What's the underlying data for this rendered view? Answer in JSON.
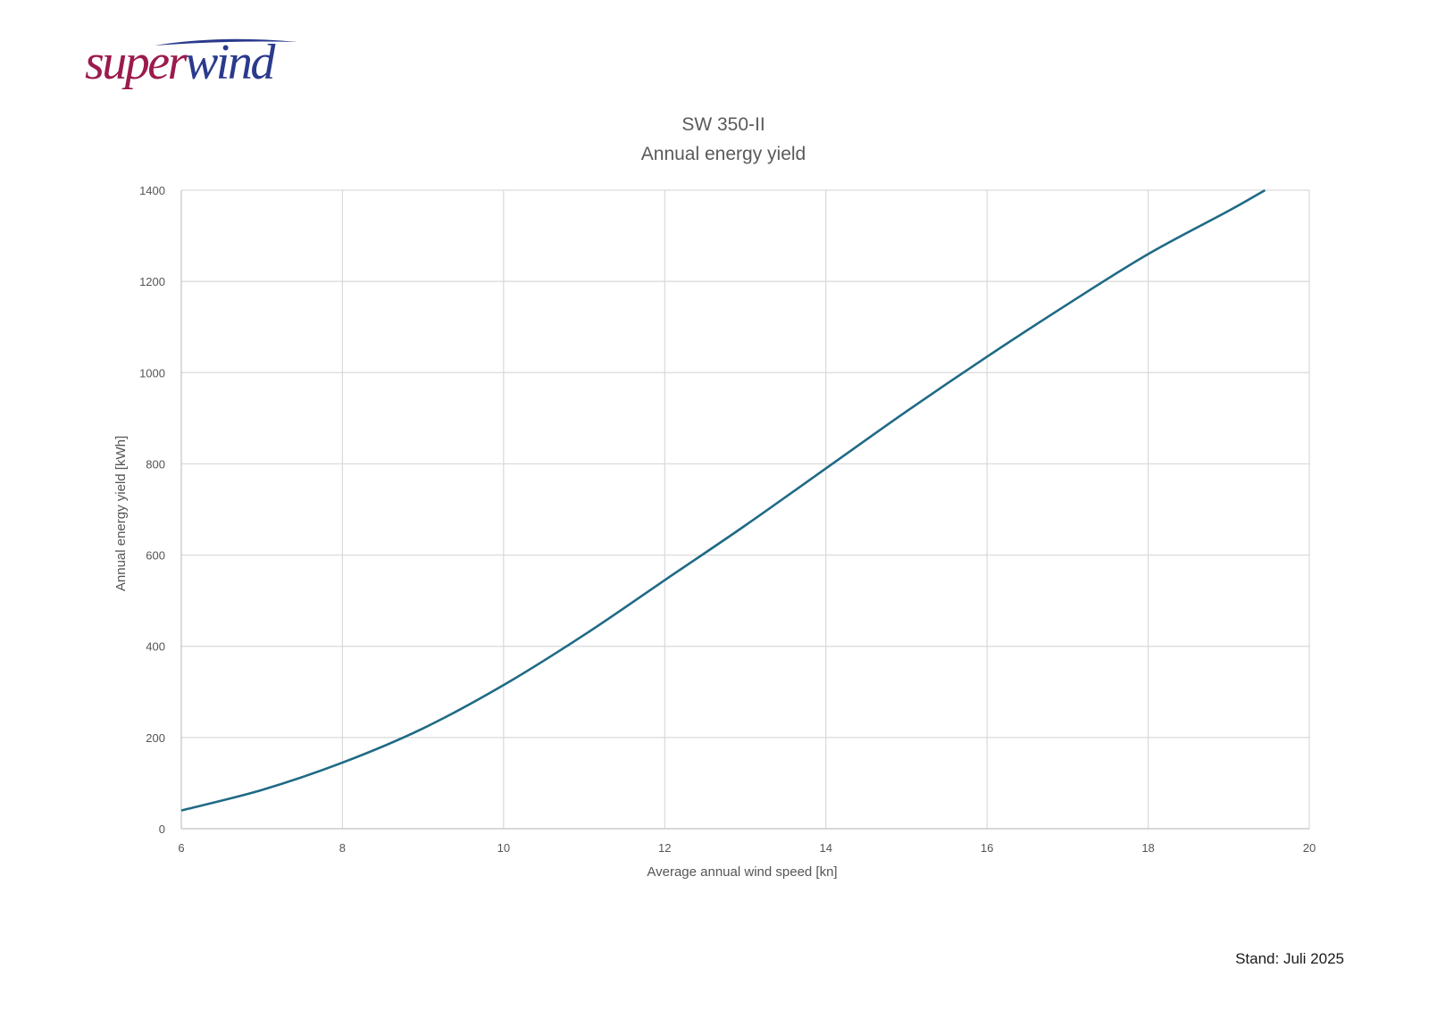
{
  "logo": {
    "text_part1": "super",
    "text_part2": "wind",
    "color_part1": "#9b1b4d",
    "color_part2": "#2b3a8c"
  },
  "footer": {
    "text": "Stand: Juli 2025"
  },
  "chart_data": {
    "type": "line",
    "title": "SW 350-II",
    "subtitle": "Annual energy yield",
    "xlabel": "Average annual wind speed [kn]",
    "ylabel": "Annual energy yield  [kWh]",
    "xlim": [
      6,
      20
    ],
    "ylim": [
      0,
      1400
    ],
    "xticks": [
      6,
      8,
      10,
      12,
      14,
      16,
      18,
      20
    ],
    "yticks": [
      0,
      200,
      400,
      600,
      800,
      1000,
      1200,
      1400
    ],
    "grid": true,
    "legend": "none",
    "line_color": "#1f6a86",
    "series": [
      {
        "x": [
          6,
          7,
          8,
          9,
          10,
          11,
          12,
          13,
          14,
          15,
          16,
          17,
          18,
          19,
          19.45
        ],
        "values": [
          40,
          85,
          145,
          220,
          315,
          425,
          545,
          665,
          790,
          915,
          1035,
          1150,
          1260,
          1355,
          1400
        ]
      }
    ]
  }
}
